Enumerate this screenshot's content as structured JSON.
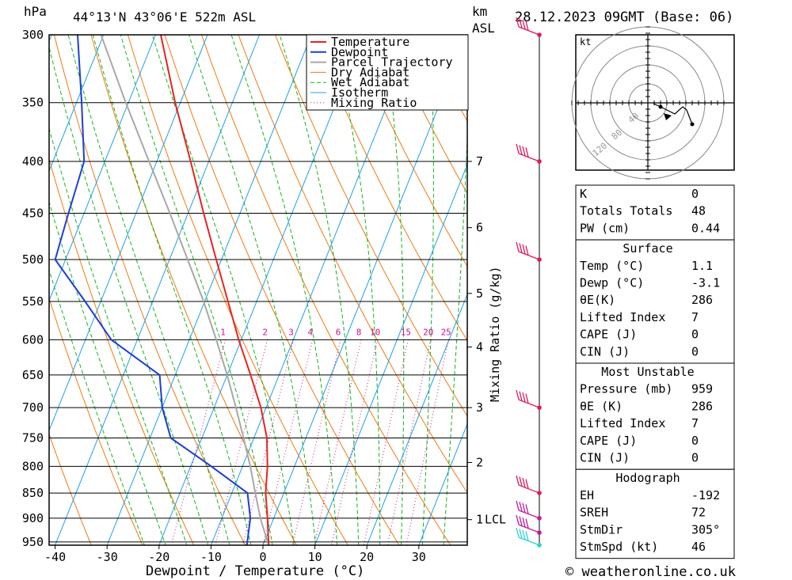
{
  "header": {
    "p_unit": "hPa",
    "location": "44°13'N 43°06'E 522m ASL",
    "km_unit": "km",
    "asl_unit": "ASL",
    "datetime": "28.12.2023 09GMT (Base: 06)"
  },
  "chart_data": {
    "type": "skew-t",
    "xlabel": "Dewpoint / Temperature (°C)",
    "y2label": "Mixing Ratio (g/kg)",
    "x_ticks": [
      -40,
      -30,
      -20,
      -10,
      0,
      10,
      20,
      30
    ],
    "pressure_levels": [
      300,
      350,
      400,
      450,
      500,
      550,
      600,
      650,
      700,
      750,
      800,
      850,
      900,
      950
    ],
    "km_ticks": [
      {
        "label": "7",
        "p": 400
      },
      {
        "label": "6",
        "p": 465
      },
      {
        "label": "5",
        "p": 540
      },
      {
        "label": "4",
        "p": 610
      },
      {
        "label": "3",
        "p": 700
      },
      {
        "label": "2",
        "p": 793
      },
      {
        "label": "1",
        "p": 903
      }
    ],
    "lcl_label": "LCL",
    "lcl_p": 903,
    "mixing_ratio_labels": [
      "1",
      "2",
      "3",
      "4",
      "6",
      "8",
      "10",
      "15",
      "20",
      "25"
    ],
    "mixing_ratio_values": [
      1,
      2,
      3,
      4,
      6,
      8,
      10,
      15,
      20,
      25
    ],
    "legend": [
      "Temperature",
      "Dewpoint",
      "Parcel Trajectory",
      "Dry Adiabat",
      "Wet Adiabat",
      "Isotherm",
      "Mixing Ratio"
    ],
    "series": [
      {
        "name": "Temperature",
        "color": "#e8231f",
        "points": [
          [
            957,
            1.1
          ],
          [
            900,
            -1.2
          ],
          [
            850,
            -3.5
          ],
          [
            800,
            -5.2
          ],
          [
            750,
            -7.5
          ],
          [
            700,
            -11.0
          ],
          [
            650,
            -15.5
          ],
          [
            600,
            -20.5
          ],
          [
            550,
            -25.5
          ],
          [
            500,
            -31.0
          ],
          [
            450,
            -37.0
          ],
          [
            400,
            -43.5
          ],
          [
            350,
            -51.0
          ],
          [
            300,
            -59.0
          ]
        ]
      },
      {
        "name": "Dewpoint",
        "color": "#1c3ed6",
        "points": [
          [
            957,
            -3.1
          ],
          [
            900,
            -4.5
          ],
          [
            850,
            -7.0
          ],
          [
            800,
            -16.0
          ],
          [
            750,
            -26.0
          ],
          [
            700,
            -30.0
          ],
          [
            650,
            -33.0
          ],
          [
            600,
            -45.0
          ],
          [
            550,
            -53.0
          ],
          [
            500,
            -62.0
          ],
          [
            450,
            -63.0
          ],
          [
            400,
            -64.0
          ],
          [
            350,
            -69.0
          ],
          [
            300,
            -75.0
          ]
        ]
      },
      {
        "name": "Parcel Trajectory",
        "color": "#a8a8a8",
        "points": [
          [
            957,
            1.1
          ],
          [
            903,
            -2.4
          ],
          [
            850,
            -5.5
          ],
          [
            800,
            -8.5
          ],
          [
            750,
            -12.0
          ],
          [
            700,
            -15.8
          ],
          [
            650,
            -20.0
          ],
          [
            600,
            -24.8
          ],
          [
            550,
            -30.2
          ],
          [
            500,
            -36.5
          ],
          [
            450,
            -43.5
          ],
          [
            400,
            -51.5
          ],
          [
            350,
            -60.5
          ],
          [
            300,
            -70.5
          ]
        ]
      }
    ],
    "wind_barbs": [
      {
        "p": 957,
        "color": "#2ad2d2"
      },
      {
        "p": 930,
        "color": "#c2189a"
      },
      {
        "p": 900,
        "color": "#c2189a"
      },
      {
        "p": 850,
        "color": "#e0185a"
      },
      {
        "p": 700,
        "color": "#e0185a"
      },
      {
        "p": 500,
        "color": "#e0185a"
      },
      {
        "p": 400,
        "color": "#e0185a"
      },
      {
        "p": 300,
        "color": "#e0185a"
      }
    ]
  },
  "hodograph": {
    "unit": "kt",
    "ring_labels": [
      "40",
      "80",
      "120"
    ]
  },
  "index_table": [
    {
      "label": "K",
      "value": "0"
    },
    {
      "label": "Totals Totals",
      "value": "48"
    },
    {
      "label": "PW (cm)",
      "value": "0.44"
    }
  ],
  "surface": {
    "title": "Surface",
    "rows": [
      {
        "label": "Temp (°C)",
        "value": "1.1"
      },
      {
        "label": "Dewp (°C)",
        "value": "-3.1"
      },
      {
        "label": "θE(K)",
        "value": "286"
      },
      {
        "label": "Lifted Index",
        "value": "7"
      },
      {
        "label": "CAPE (J)",
        "value": "0"
      },
      {
        "label": "CIN (J)",
        "value": "0"
      }
    ]
  },
  "most_unstable": {
    "title": "Most Unstable",
    "rows": [
      {
        "label": "Pressure (mb)",
        "value": "959"
      },
      {
        "label": "θE (K)",
        "value": "286"
      },
      {
        "label": "Lifted Index",
        "value": "7"
      },
      {
        "label": "CAPE (J)",
        "value": "0"
      },
      {
        "label": "CIN (J)",
        "value": "0"
      }
    ]
  },
  "hodograph_table": {
    "title": "Hodograph",
    "rows": [
      {
        "label": "EH",
        "value": "-192"
      },
      {
        "label": "SREH",
        "value": "72"
      },
      {
        "label": "StmDir",
        "value": "305°"
      },
      {
        "label": "StmSpd (kt)",
        "value": "46"
      }
    ]
  },
  "footer": {
    "copyright": "© weatheronline.co.uk"
  }
}
